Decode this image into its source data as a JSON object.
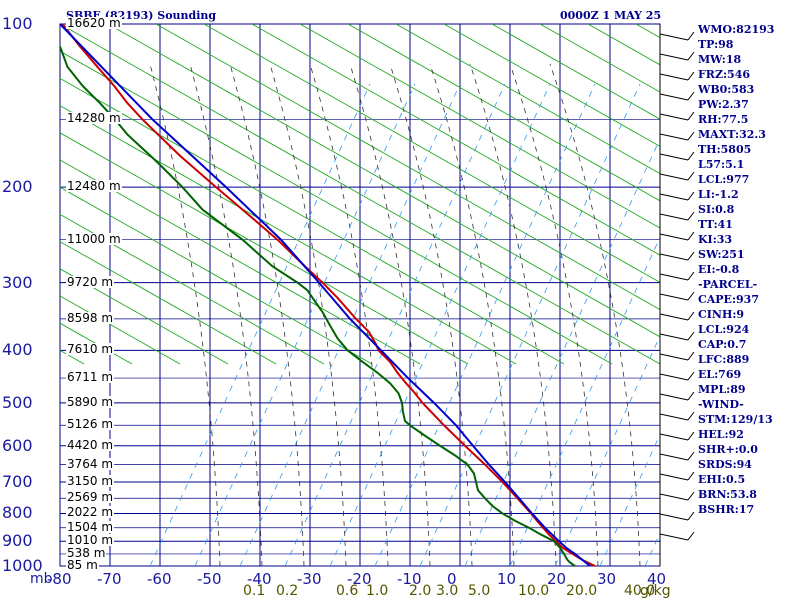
{
  "header": {
    "station_title": "SBBE (82193) Sounding",
    "time": "0000Z  1 MAY 25"
  },
  "indices": [
    "WMO:82193",
    "TP:98",
    "MW:18",
    "FRZ:546",
    "WB0:583",
    "PW:2.37",
    "RH:77.5",
    "MAXT:32.3",
    "TH:5805",
    "L57:5.1",
    "LCL:977",
    "LI:-1.2",
    "SI:0.8",
    "TT:41",
    "KI:33",
    "SW:251",
    "EI:-0.8",
    "-PARCEL-",
    "CAPE:937",
    "CINH:9",
    "LCL:924",
    "CAP:0.7",
    "LFC:889",
    "EL:769",
    "MPL:89",
    "-WIND-",
    "STM:129/13",
    "HEL:92",
    "SHR+:0.0",
    "SRDS:94",
    "EHI:0.5",
    "BRN:53.8",
    "BSHR:17"
  ],
  "chart_data": {
    "type": "line",
    "title": "SBBE (82193) Sounding",
    "time": "0000Z  1 MAY 25",
    "xaxis": {
      "unit_label": "mb",
      "ticks": [
        -80,
        -70,
        -60,
        -50,
        -40,
        -30,
        -20,
        -10,
        0,
        10,
        20,
        30,
        40
      ],
      "range": [
        -80,
        40
      ]
    },
    "yaxis": {
      "log_scale": true,
      "ticks": [
        100,
        200,
        300,
        400,
        500,
        600,
        700,
        800,
        900,
        1000
      ],
      "range": [
        100,
        1000
      ]
    },
    "mixing_ratio_labels": [
      "0.1",
      "0.2",
      "0.6",
      "1.0",
      "2.0",
      "3.0",
      "5.0",
      "10.0",
      "20.0",
      "40.0"
    ],
    "mixing_ratio_unit": "g/kg",
    "height_labels": [
      {
        "p": 100,
        "text": "16620 m"
      },
      {
        "p": 150,
        "text": "14280 m"
      },
      {
        "p": 200,
        "text": "12480 m"
      },
      {
        "p": 250,
        "text": "11000 m"
      },
      {
        "p": 300,
        "text": "9720 m"
      },
      {
        "p": 350,
        "text": "8598 m"
      },
      {
        "p": 400,
        "text": "7610 m"
      },
      {
        "p": 450,
        "text": "6711 m"
      },
      {
        "p": 500,
        "text": "5890 m"
      },
      {
        "p": 550,
        "text": "5126 m"
      },
      {
        "p": 600,
        "text": "4420 m"
      },
      {
        "p": 650,
        "text": "3764 m"
      },
      {
        "p": 700,
        "text": "3150 m"
      },
      {
        "p": 750,
        "text": "2569 m"
      },
      {
        "p": 800,
        "text": "2022 m"
      },
      {
        "p": 850,
        "text": "1504 m"
      },
      {
        "p": 900,
        "text": "1010 m"
      },
      {
        "p": 950,
        "text": "538 m"
      },
      {
        "p": 1000,
        "text": "85 m"
      }
    ],
    "temperature_color": "#cc0000",
    "dewpoint_color": "#006400",
    "parcel_color": "#0000cc",
    "series": [
      {
        "color": "#cc0000",
        "points": [
          [
            1000,
            27
          ],
          [
            975,
            24.5
          ],
          [
            950,
            22.5
          ],
          [
            925,
            20.5
          ],
          [
            900,
            19.2
          ],
          [
            875,
            17.8
          ],
          [
            850,
            16.6
          ],
          [
            825,
            15.4
          ],
          [
            800,
            14.2
          ],
          [
            750,
            11.5
          ],
          [
            700,
            8.5
          ],
          [
            650,
            5.0
          ],
          [
            600,
            1.0
          ],
          [
            550,
            -3.2
          ],
          [
            500,
            -7.5
          ],
          [
            480,
            -9.0
          ],
          [
            460,
            -10.8
          ],
          [
            440,
            -12.5
          ],
          [
            420,
            -14.0
          ],
          [
            400,
            -16.3
          ],
          [
            390,
            -16.8
          ],
          [
            370,
            -18.2
          ],
          [
            350,
            -20.8
          ],
          [
            320,
            -24.5
          ],
          [
            300,
            -27.5
          ],
          [
            280,
            -31.0
          ],
          [
            250,
            -36.5
          ],
          [
            220,
            -43.5
          ],
          [
            200,
            -48.8
          ],
          [
            175,
            -56.0
          ],
          [
            150,
            -63.5
          ],
          [
            140,
            -66.5
          ],
          [
            130,
            -69.2
          ],
          [
            120,
            -72.5
          ],
          [
            110,
            -76.0
          ],
          [
            100,
            -79.5
          ]
        ]
      },
      {
        "color": "#006400",
        "points": [
          [
            1000,
            23
          ],
          [
            985,
            22
          ],
          [
            975,
            21.5
          ],
          [
            950,
            20.8
          ],
          [
            925,
            20.0
          ],
          [
            900,
            18.8
          ],
          [
            875,
            16.2
          ],
          [
            850,
            13.8
          ],
          [
            825,
            11.0
          ],
          [
            800,
            8.5
          ],
          [
            775,
            6.5
          ],
          [
            750,
            5.0
          ],
          [
            725,
            3.6
          ],
          [
            700,
            3.2
          ],
          [
            675,
            2.8
          ],
          [
            650,
            1.5
          ],
          [
            625,
            -1.0
          ],
          [
            600,
            -4.0
          ],
          [
            575,
            -7.0
          ],
          [
            550,
            -10.0
          ],
          [
            540,
            -11.0
          ],
          [
            520,
            -11.4
          ],
          [
            500,
            -11.6
          ],
          [
            480,
            -12.3
          ],
          [
            460,
            -14.0
          ],
          [
            440,
            -16.5
          ],
          [
            420,
            -19.5
          ],
          [
            400,
            -22.5
          ],
          [
            380,
            -24.5
          ],
          [
            360,
            -26.0
          ],
          [
            340,
            -27.5
          ],
          [
            320,
            -29.5
          ],
          [
            310,
            -30.5
          ],
          [
            300,
            -32.5
          ],
          [
            280,
            -37.5
          ],
          [
            250,
            -43.5
          ],
          [
            220,
            -51.5
          ],
          [
            200,
            -55.5
          ],
          [
            180,
            -60.5
          ],
          [
            160,
            -66.5
          ],
          [
            150,
            -69.0
          ],
          [
            140,
            -72.0
          ],
          [
            130,
            -75.5
          ],
          [
            120,
            -78.5
          ],
          [
            110,
            -80.0
          ]
        ]
      },
      {
        "color": "#0000cc",
        "points": [
          [
            1000,
            26
          ],
          [
            950,
            23.0
          ],
          [
            925,
            21.2
          ],
          [
            900,
            19.8
          ],
          [
            850,
            17.0
          ],
          [
            800,
            14.4
          ],
          [
            750,
            11.8
          ],
          [
            700,
            9.0
          ],
          [
            650,
            5.8
          ],
          [
            600,
            2.6
          ],
          [
            550,
            -0.8
          ],
          [
            500,
            -5.2
          ],
          [
            450,
            -10.4
          ],
          [
            400,
            -15.8
          ],
          [
            350,
            -22.0
          ],
          [
            300,
            -28.2
          ],
          [
            250,
            -35.8
          ],
          [
            200,
            -46.8
          ],
          [
            150,
            -61.5
          ],
          [
            100,
            -80.0
          ]
        ]
      }
    ],
    "wind_profile_present": true,
    "grid": true
  }
}
